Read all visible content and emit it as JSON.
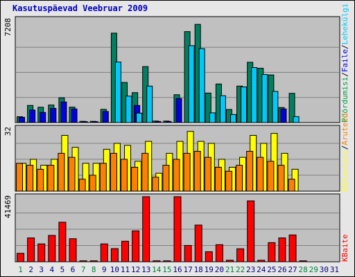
{
  "title": "Kasutuspäevad Veebruar 2009",
  "colors": {
    "frame_bg": "#e6e6e6",
    "plot_bg": "#c0c0c0",
    "grid": "#808080",
    "weekday_label": "#000080",
    "weekend_label": "#00803c",
    "visits": "#008060",
    "pages": "#00c8f8",
    "files": "#0000e0",
    "hits": "#00a040",
    "kbytes": "#ff0000",
    "sites": "#ff8000",
    "visits_yellow": "#ffff00"
  },
  "chart_data": [
    {
      "type": "bar",
      "panel": "top",
      "max_label": "7208",
      "ylim": [
        0,
        7208
      ],
      "legend": {
        "position": "right",
        "entries": [
          {
            "text": "Pöördumisi",
            "color": "#00a040"
          },
          {
            "text": "Faile",
            "color": "#0000e0"
          },
          {
            "text": "Lehekülgi",
            "color": "#00c8f8"
          }
        ],
        "separator": "/"
      },
      "categories": [
        "1",
        "2",
        "3",
        "4",
        "5",
        "6",
        "7",
        "8",
        "9",
        "10",
        "11",
        "12",
        "13",
        "14",
        "15",
        "16",
        "17",
        "18",
        "19",
        "20",
        "21",
        "22",
        "23",
        "24",
        "25",
        "26",
        "27",
        "28",
        "29",
        "30",
        "31"
      ],
      "series": [
        {
          "name": "Pöördumisi",
          "color": "#008060",
          "values": [
            420,
            1230,
            1100,
            1260,
            1780,
            1110,
            90,
            90,
            950,
            6420,
            2880,
            2150,
            4020,
            110,
            110,
            2000,
            6530,
            7050,
            2120,
            2770,
            940,
            2620,
            4330,
            3900,
            3420,
            1080,
            2100,
            0,
            0,
            0,
            0
          ]
        },
        {
          "name": "Faile",
          "color": "#0000e0",
          "values": [
            380,
            900,
            730,
            1020,
            1480,
            980,
            70,
            70,
            800,
            0,
            0,
            1230,
            0,
            80,
            80,
            1730,
            0,
            0,
            0,
            0,
            0,
            0,
            0,
            0,
            0,
            980,
            0,
            0,
            0,
            0,
            0
          ]
        },
        {
          "name": "Lehekülgi",
          "color": "#00c8f8",
          "values": [
            0,
            0,
            0,
            0,
            0,
            0,
            0,
            0,
            0,
            4350,
            1900,
            680,
            2620,
            0,
            0,
            0,
            5520,
            5310,
            700,
            1930,
            580,
            2560,
            3950,
            3450,
            2240,
            0,
            430,
            0,
            0,
            0,
            0
          ]
        }
      ]
    },
    {
      "type": "bar",
      "panel": "middle",
      "max_label": "32",
      "ylim": [
        0,
        32
      ],
      "legend": {
        "position": "right",
        "entries": [
          {
            "text": "Külastusi",
            "color": "#ffff00"
          },
          {
            "text": "Aruteid",
            "color": "#ff8000"
          }
        ],
        "separator": "/"
      },
      "categories": [
        "1",
        "2",
        "3",
        "4",
        "5",
        "6",
        "7",
        "8",
        "9",
        "10",
        "11",
        "12",
        "13",
        "14",
        "15",
        "16",
        "17",
        "18",
        "19",
        "20",
        "21",
        "22",
        "23",
        "24",
        "25",
        "26",
        "27",
        "28",
        "29",
        "30",
        "31"
      ],
      "series": [
        {
          "name": "Külastusi",
          "color": "#ffff00",
          "values": [
            14,
            16,
            13,
            16,
            28,
            22,
            14,
            14,
            21,
            24,
            23,
            15,
            25,
            9,
            19,
            25,
            30,
            25,
            24,
            16,
            12,
            17,
            28,
            24,
            29,
            19,
            11,
            0,
            0,
            0,
            0
          ]
        },
        {
          "name": "Aruteid",
          "color": "#ff8000",
          "values": [
            14,
            13,
            11,
            13,
            19,
            17,
            6,
            8,
            14,
            19,
            16,
            12,
            19,
            7,
            13,
            16,
            19,
            20,
            17,
            12,
            10,
            13,
            20,
            17,
            15,
            13,
            6,
            0,
            0,
            0,
            0
          ]
        }
      ]
    },
    {
      "type": "bar",
      "panel": "bottom",
      "max_label": "41469",
      "ylim": [
        0,
        41469
      ],
      "legend": {
        "position": "right",
        "entries": [
          {
            "text": "KBaite",
            "color": "#ff0000"
          }
        ],
        "separator": "/"
      },
      "categories": [
        "1",
        "2",
        "3",
        "4",
        "5",
        "6",
        "7",
        "8",
        "9",
        "10",
        "11",
        "12",
        "13",
        "14",
        "15",
        "16",
        "17",
        "18",
        "19",
        "20",
        "21",
        "22",
        "23",
        "24",
        "25",
        "26",
        "27",
        "28",
        "29",
        "30",
        "31"
      ],
      "series": [
        {
          "name": "KBaite",
          "color": "#ff0000",
          "values": [
            5400,
            15200,
            11400,
            16800,
            25200,
            14700,
            620,
            620,
            11400,
            8400,
            13100,
            19700,
            41469,
            620,
            620,
            41469,
            10400,
            23400,
            6400,
            10900,
            1000,
            8300,
            38800,
            1000,
            12200,
            15200,
            17100,
            620,
            0,
            0,
            0
          ]
        }
      ]
    }
  ],
  "x_labels": [
    "1",
    "2",
    "3",
    "4",
    "5",
    "6",
    "7",
    "8",
    "9",
    "10",
    "11",
    "12",
    "13",
    "14",
    "15",
    "16",
    "17",
    "18",
    "19",
    "20",
    "21",
    "22",
    "23",
    "24",
    "25",
    "26",
    "27",
    "28",
    "29",
    "30",
    "31"
  ],
  "weekend_days": [
    "1",
    "7",
    "8",
    "14",
    "15",
    "21",
    "22",
    "28",
    "29"
  ]
}
